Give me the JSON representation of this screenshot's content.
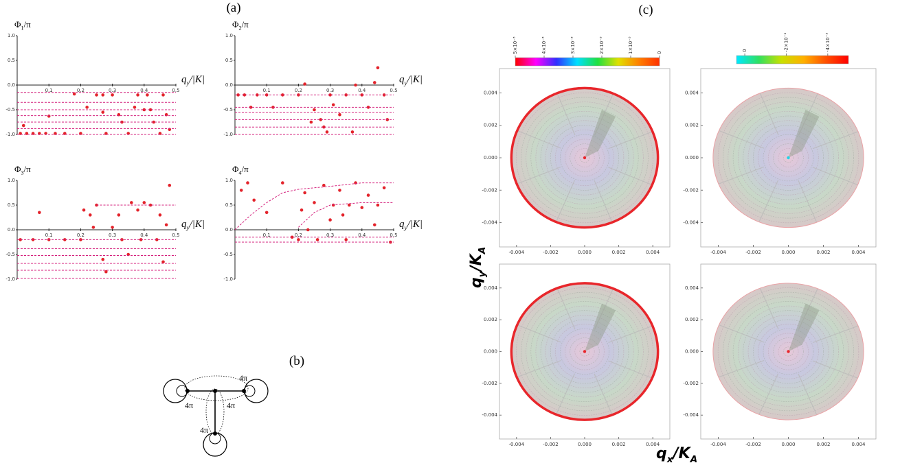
{
  "panel_labels": {
    "a": "(a)",
    "b": "(b)",
    "c": "(c)"
  },
  "chart_data": [
    {
      "type": "scatter",
      "ylabel": [
        "Φ",
        "1",
        "/π"
      ],
      "xlabel": [
        "q",
        "y",
        "/|K|"
      ],
      "xlim": [
        0,
        0.5
      ],
      "ylim": [
        -1,
        1
      ],
      "xticks": [
        0.1,
        0.2,
        0.3,
        0.4,
        0.5
      ],
      "yticks": [
        {
          "value": -1,
          "label": "-1.0"
        },
        -0.5,
        {
          "value": 0,
          "label": "0.0"
        },
        0.5,
        {
          "value": 1,
          "label": "1.0"
        }
      ],
      "series": [
        {
          "style": "markers",
          "color": "#e3232b",
          "x": [
            0.01,
            0.03,
            0.05,
            0.07,
            0.09,
            0.1,
            0.12,
            0.15,
            0.18,
            0.2,
            0.22,
            0.25,
            0.27,
            0.28,
            0.3,
            0.32,
            0.33,
            0.35,
            0.37,
            0.38,
            0.4,
            0.42,
            0.43,
            0.45,
            0.46,
            0.47,
            0.48,
            0.02,
            0.27,
            0.41
          ],
          "values": [
            -0.98,
            -0.98,
            -0.98,
            -0.98,
            -0.98,
            -0.63,
            -0.98,
            -0.98,
            -0.18,
            -0.98,
            -0.45,
            -0.2,
            -0.55,
            -0.98,
            -0.2,
            -0.6,
            -0.75,
            -0.98,
            -0.45,
            -0.2,
            -0.5,
            -0.5,
            -0.75,
            -0.98,
            -0.2,
            -0.6,
            -0.9,
            -0.82,
            -0.2,
            -0.2
          ]
        },
        {
          "style": "dashed",
          "color": "#d4207c",
          "x": [
            0,
            0.5
          ],
          "values": [
            -0.15,
            -0.15
          ]
        },
        {
          "style": "dashed",
          "color": "#d4207c",
          "x": [
            0,
            0.5
          ],
          "values": [
            -0.35,
            -0.35
          ]
        },
        {
          "style": "dashed",
          "color": "#d4207c",
          "x": [
            0,
            0.5
          ],
          "values": [
            -0.5,
            -0.5
          ]
        },
        {
          "style": "dashed",
          "color": "#d4207c",
          "x": [
            0,
            0.5
          ],
          "values": [
            -0.62,
            -0.62
          ]
        },
        {
          "style": "dashed",
          "color": "#d4207c",
          "x": [
            0,
            0.5
          ],
          "values": [
            -0.75,
            -0.75
          ]
        },
        {
          "style": "dashed",
          "color": "#d4207c",
          "x": [
            0,
            0.5
          ],
          "values": [
            -0.88,
            -0.88
          ]
        },
        {
          "style": "dashed",
          "color": "#d4207c",
          "x": [
            0,
            0.5
          ],
          "values": [
            -1,
            -1
          ]
        }
      ]
    },
    {
      "type": "scatter",
      "ylabel": [
        "Φ",
        "2",
        "/π"
      ],
      "xlabel": [
        "q",
        "y",
        "/|K|"
      ],
      "xlim": [
        0,
        0.5
      ],
      "ylim": [
        -1,
        1
      ],
      "xticks": [
        0.1,
        0.2,
        0.3,
        0.4,
        0.5
      ],
      "yticks": [
        {
          "value": -1,
          "label": "-1.0"
        },
        -0.5,
        {
          "value": 0,
          "label": "0.0"
        },
        0.5,
        {
          "value": 1,
          "label": "1.0"
        }
      ],
      "series": [
        {
          "style": "markers",
          "color": "#e3232b",
          "x": [
            0.01,
            0.03,
            0.05,
            0.07,
            0.1,
            0.12,
            0.15,
            0.2,
            0.22,
            0.25,
            0.27,
            0.28,
            0.3,
            0.31,
            0.33,
            0.35,
            0.37,
            0.38,
            0.4,
            0.42,
            0.44,
            0.45,
            0.47,
            0.48,
            0.29,
            0.24
          ],
          "values": [
            -0.2,
            -0.2,
            -0.45,
            -0.2,
            -0.2,
            -0.45,
            -0.2,
            -0.2,
            0.02,
            -0.5,
            -0.7,
            -0.85,
            -0.2,
            -0.4,
            -0.6,
            -0.2,
            -0.95,
            0,
            -0.2,
            -0.45,
            0.05,
            0.35,
            -0.2,
            -0.7,
            -0.95,
            -0.75
          ]
        },
        {
          "style": "dashed",
          "color": "#d4207c",
          "x": [
            0,
            0.5
          ],
          "values": [
            -0.2,
            -0.2
          ]
        },
        {
          "style": "dashed",
          "color": "#d4207c",
          "x": [
            0,
            0.5
          ],
          "values": [
            -0.45,
            -0.45
          ]
        },
        {
          "style": "dashed",
          "color": "#d4207c",
          "x": [
            0,
            0.5
          ],
          "values": [
            -0.55,
            -0.55
          ]
        },
        {
          "style": "dashed",
          "color": "#d4207c",
          "x": [
            0,
            0.5
          ],
          "values": [
            -0.7,
            -0.7
          ]
        },
        {
          "style": "dashed",
          "color": "#d4207c",
          "x": [
            0,
            0.5
          ],
          "values": [
            -0.85,
            -0.85
          ]
        },
        {
          "style": "dashed",
          "color": "#d4207c",
          "x": [
            0,
            0.5
          ],
          "values": [
            -1,
            -1
          ]
        }
      ]
    },
    {
      "type": "scatter",
      "ylabel": [
        "Φ",
        "3",
        "/π"
      ],
      "xlabel": [
        "q",
        "y",
        "/|K|"
      ],
      "xlim": [
        0,
        0.5
      ],
      "ylim": [
        -1,
        1
      ],
      "xticks": [
        0.1,
        0.2,
        0.3,
        0.4,
        0.5
      ],
      "yticks": [
        {
          "value": -1,
          "label": "-1.0"
        },
        -0.5,
        {
          "value": 0,
          "label": "0.0"
        },
        0.5,
        {
          "value": 1,
          "label": "1.0"
        }
      ],
      "series": [
        {
          "style": "markers",
          "color": "#e3232b",
          "x": [
            0.01,
            0.05,
            0.07,
            0.1,
            0.15,
            0.2,
            0.21,
            0.23,
            0.24,
            0.25,
            0.27,
            0.28,
            0.3,
            0.32,
            0.35,
            0.36,
            0.38,
            0.4,
            0.42,
            0.44,
            0.45,
            0.47,
            0.48,
            0.46,
            0.33,
            0.39
          ],
          "values": [
            -0.2,
            -0.2,
            0.35,
            -0.2,
            -0.2,
            -0.2,
            0.4,
            0.3,
            0.05,
            0.5,
            -0.6,
            -0.85,
            0.05,
            0.3,
            -0.5,
            0.55,
            0.4,
            0.55,
            0.5,
            -0.2,
            0.3,
            0.1,
            0.9,
            -0.65,
            -0.2,
            -0.2
          ]
        },
        {
          "style": "dashed",
          "color": "#d4207c",
          "x": [
            0.25,
            0.5
          ],
          "values": [
            0.5,
            0.5
          ]
        },
        {
          "style": "dashed",
          "color": "#d4207c",
          "x": [
            0,
            0.5
          ],
          "values": [
            -0.2,
            -0.2
          ]
        },
        {
          "style": "dashed",
          "color": "#d4207c",
          "x": [
            0,
            0.5
          ],
          "values": [
            -0.38,
            -0.38
          ]
        },
        {
          "style": "dashed",
          "color": "#d4207c",
          "x": [
            0,
            0.5
          ],
          "values": [
            -0.52,
            -0.52
          ]
        },
        {
          "style": "dashed",
          "color": "#d4207c",
          "x": [
            0,
            0.5
          ],
          "values": [
            -0.68,
            -0.68
          ]
        },
        {
          "style": "dashed",
          "color": "#d4207c",
          "x": [
            0,
            0.5
          ],
          "values": [
            -0.82,
            -0.82
          ]
        },
        {
          "style": "dashed",
          "color": "#d4207c",
          "x": [
            0,
            0.5
          ],
          "values": [
            -0.98,
            -0.98
          ]
        }
      ]
    },
    {
      "type": "scatter",
      "ylabel": [
        "Φ",
        "4",
        "/π"
      ],
      "xlabel": [
        "q",
        "y",
        "/|K|"
      ],
      "xlim": [
        0,
        0.5
      ],
      "ylim": [
        -1,
        1
      ],
      "xticks": [
        0.1,
        0.2,
        0.3,
        0.4,
        0.5
      ],
      "yticks": [
        {
          "value": -1,
          "label": "-1.0"
        },
        -0.5,
        {
          "value": 0,
          "label": "0.0"
        },
        0.5,
        {
          "value": 1,
          "label": "1.0"
        }
      ],
      "series": [
        {
          "style": "markers",
          "color": "#e3232b",
          "x": [
            0.02,
            0.04,
            0.06,
            0.1,
            0.15,
            0.18,
            0.2,
            0.21,
            0.22,
            0.23,
            0.25,
            0.26,
            0.28,
            0.3,
            0.31,
            0.33,
            0.35,
            0.36,
            0.38,
            0.4,
            0.42,
            0.44,
            0.45,
            0.47,
            0.49,
            0.34
          ],
          "values": [
            0.8,
            0.95,
            0.6,
            0.35,
            0.95,
            -0.15,
            -0.2,
            0.4,
            0.75,
            0,
            0.55,
            -0.2,
            0.9,
            0.2,
            0.5,
            0.8,
            -0.2,
            0.5,
            0.95,
            0.45,
            0.7,
            0.1,
            0.5,
            0.85,
            -0.25,
            0.3
          ]
        },
        {
          "style": "dashed",
          "color": "#d4207c",
          "x": [
            0,
            0.05,
            0.1,
            0.15,
            0.2,
            0.3,
            0.4,
            0.5
          ],
          "values": [
            0,
            0.3,
            0.55,
            0.75,
            0.82,
            0.88,
            0.95,
            0.95
          ]
        },
        {
          "style": "dashed",
          "color": "#d4207c",
          "x": [
            0.2,
            0.25,
            0.3,
            0.4,
            0.5
          ],
          "values": [
            0.05,
            0.35,
            0.5,
            0.55,
            0.55
          ]
        },
        {
          "style": "dashed",
          "color": "#d4207c",
          "x": [
            0,
            0.5
          ],
          "values": [
            -0.15,
            -0.15
          ]
        },
        {
          "style": "dashed",
          "color": "#d4207c",
          "x": [
            0,
            0.5
          ],
          "values": [
            -0.25,
            -0.25
          ]
        }
      ]
    },
    {
      "type": "density",
      "xlim": [
        -0.005,
        0.005
      ],
      "ylim": [
        -0.0055,
        0.0055
      ],
      "xticks": [
        -0.004,
        -0.002,
        {
          "value": 0,
          "label": "0.000"
        },
        0.002,
        0.004
      ],
      "yticks": [
        -0.004,
        -0.002,
        {
          "value": 0,
          "label": "0.000"
        },
        0.002,
        0.004
      ],
      "rim_color": "#e8262b",
      "center_color": "#e8262b"
    },
    {
      "type": "density",
      "xlim": [
        -0.005,
        0.005
      ],
      "ylim": [
        -0.0055,
        0.0055
      ],
      "xticks": [
        -0.004,
        -0.002,
        {
          "value": 0,
          "label": "0.000"
        },
        0.002,
        0.004
      ],
      "yticks": [
        -0.004,
        -0.002,
        {
          "value": 0,
          "label": "0.000"
        },
        0.002,
        0.004
      ],
      "rim_color": "#e9a3a6",
      "center_color": "#22d3e6"
    },
    {
      "type": "density",
      "xlim": [
        -0.005,
        0.005
      ],
      "ylim": [
        -0.0055,
        0.0055
      ],
      "xticks": [
        -0.004,
        -0.002,
        {
          "value": 0,
          "label": "0.000"
        },
        0.002,
        0.004
      ],
      "yticks": [
        -0.004,
        -0.002,
        {
          "value": 0,
          "label": "0.000"
        },
        0.002,
        0.004
      ],
      "rim_color": "#e8262b",
      "center_color": "#e8262b"
    },
    {
      "type": "density",
      "xlim": [
        -0.005,
        0.005
      ],
      "ylim": [
        -0.0055,
        0.0055
      ],
      "xticks": [
        -0.004,
        -0.002,
        {
          "value": 0,
          "label": "0.000"
        },
        0.002,
        0.004
      ],
      "yticks": [
        -0.004,
        -0.002,
        {
          "value": 0,
          "label": "0.000"
        },
        0.002,
        0.004
      ],
      "rim_color": "#e9a3a6",
      "center_color": "#e8262b"
    }
  ],
  "panel_c": {
    "ylabel": [
      "q",
      "y",
      "/K",
      "A"
    ],
    "xlabel": [
      "q",
      "x",
      "/K",
      "A"
    ],
    "colorbars": [
      {
        "range": [
          0.005,
          0
        ],
        "colors": [
          "#ff0000",
          "#ff00ff",
          "#3030ff",
          "#00e0ff",
          "#20e040",
          "#e0e000",
          "#ff8000",
          "#ff3000"
        ],
        "ticks": [
          {
            "value": 0.005,
            "label": "5×10⁻³"
          },
          {
            "value": 0.004,
            "label": "4×10⁻³"
          },
          {
            "value": 0.003,
            "label": "3×10⁻³"
          },
          {
            "value": 0.002,
            "label": "2×10⁻³"
          },
          {
            "value": 0.001,
            "label": "1×10⁻³"
          },
          0
        ]
      },
      {
        "range": [
          0.0004,
          -0.005
        ],
        "colors": [
          "#00e8ff",
          "#30e060",
          "#c8e000",
          "#ffb000",
          "#ff5000",
          "#ff0000"
        ],
        "ticks": [
          0,
          {
            "value": -0.002,
            "label": "-2×10⁻³"
          },
          {
            "value": -0.004,
            "label": "-4×10⁻³"
          }
        ]
      }
    ]
  },
  "diagram": {
    "labels": [
      "4π",
      "4π",
      "4π",
      "4π"
    ]
  }
}
